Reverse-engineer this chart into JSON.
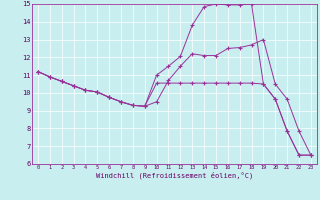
{
  "xlabel": "Windchill (Refroidissement éolien,°C)",
  "xlim": [
    -0.5,
    23.5
  ],
  "ylim": [
    6,
    15
  ],
  "xticks": [
    0,
    1,
    2,
    3,
    4,
    5,
    6,
    7,
    8,
    9,
    10,
    11,
    12,
    13,
    14,
    15,
    16,
    17,
    18,
    19,
    20,
    21,
    22,
    23
  ],
  "yticks": [
    6,
    7,
    8,
    9,
    10,
    11,
    12,
    13,
    14,
    15
  ],
  "bg_color": "#c8eef0",
  "line_color": "#993399",
  "line1_x": [
    0,
    1,
    2,
    3,
    4,
    5,
    6,
    7,
    8,
    9,
    10,
    11,
    12,
    13,
    14,
    15,
    16,
    17,
    18,
    19,
    20,
    21,
    22,
    23
  ],
  "line1_y": [
    11.2,
    10.9,
    10.65,
    10.4,
    10.15,
    10.05,
    9.75,
    9.5,
    9.3,
    9.25,
    11.0,
    11.5,
    12.05,
    13.8,
    14.85,
    15.0,
    14.95,
    14.95,
    15.0,
    10.5,
    9.65,
    7.85,
    6.5,
    6.5
  ],
  "line2_x": [
    0,
    1,
    2,
    3,
    4,
    5,
    6,
    7,
    8,
    9,
    10,
    11,
    12,
    13,
    14,
    15,
    16,
    17,
    18,
    19,
    20,
    21,
    22,
    23
  ],
  "line2_y": [
    11.2,
    10.9,
    10.65,
    10.4,
    10.15,
    10.05,
    9.75,
    9.5,
    9.3,
    9.25,
    9.5,
    10.7,
    11.5,
    12.2,
    12.1,
    12.1,
    12.5,
    12.55,
    12.7,
    13.0,
    10.5,
    9.65,
    7.85,
    6.5
  ],
  "line3_x": [
    0,
    1,
    2,
    3,
    4,
    5,
    6,
    7,
    8,
    9,
    10,
    11,
    12,
    13,
    14,
    15,
    16,
    17,
    18,
    19,
    20,
    21,
    22,
    23
  ],
  "line3_y": [
    11.2,
    10.9,
    10.65,
    10.4,
    10.15,
    10.05,
    9.75,
    9.5,
    9.3,
    9.25,
    10.55,
    10.55,
    10.55,
    10.55,
    10.55,
    10.55,
    10.55,
    10.55,
    10.55,
    10.5,
    9.65,
    7.85,
    6.5,
    6.5
  ]
}
